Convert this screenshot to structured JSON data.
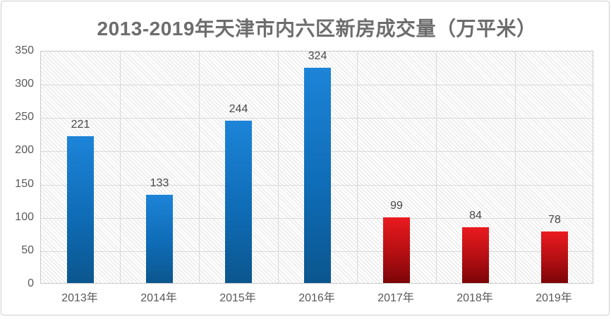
{
  "chart_data": {
    "type": "bar",
    "title": "2013-2019年天津市内六区新房成交量（万平米）",
    "categories": [
      "2013年",
      "2014年",
      "2015年",
      "2016年",
      "2017年",
      "2018年",
      "2019年"
    ],
    "values": [
      221,
      133,
      244,
      324,
      99,
      84,
      78
    ],
    "bar_palette": [
      "blue",
      "blue",
      "blue",
      "blue",
      "red",
      "red",
      "red"
    ],
    "data_labels": [
      "221",
      "133",
      "244",
      "324",
      "99",
      "84",
      "78"
    ],
    "y_ticks": [
      350,
      300,
      250,
      200,
      150,
      100,
      50,
      0
    ],
    "ylim": [
      0,
      350
    ],
    "xlabel": "",
    "ylabel": "",
    "legend": "none",
    "grid": {
      "horizontal": true,
      "vertical": true
    },
    "plot_background": "diagonal-hatch",
    "colors": {
      "blue_bar_top": "#1d84d8",
      "blue_bar_bottom": "#0b568e",
      "red_bar_top": "#ea1a1f",
      "red_bar_bottom": "#7c0507",
      "grid_line": "#d9d9d9",
      "plot_border": "#c9c9c9",
      "outer_border": "#cfcfcf",
      "title_text": "#6d6d6d",
      "axis_text": "#595959",
      "data_label_text": "#474747",
      "background": "#ffffff"
    }
  }
}
